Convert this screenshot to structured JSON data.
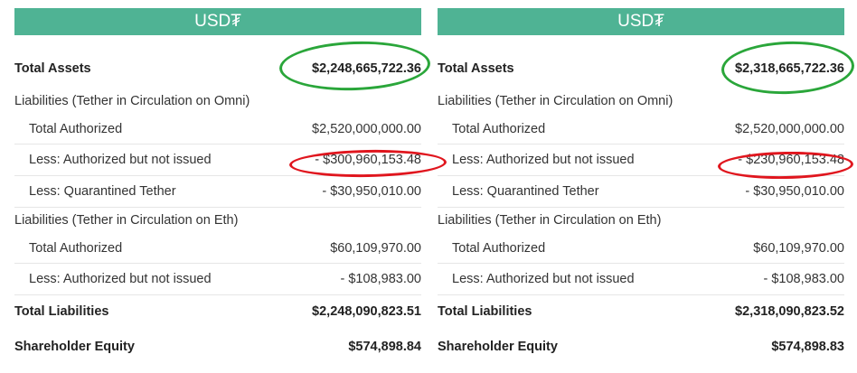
{
  "left": {
    "header": "USD₮",
    "total_assets_label": "Total Assets",
    "total_assets_value": "$2,248,665,722.36",
    "omni_section": "Liabilities (Tether in Circulation on Omni)",
    "omni_total_authorized_label": "Total Authorized",
    "omni_total_authorized_value": "$2,520,000,000.00",
    "omni_less_unissued_label": "Less: Authorized but not issued",
    "omni_less_unissued_value": "- $300,960,153.48",
    "omni_quarantined_label": "Less: Quarantined Tether",
    "omni_quarantined_value": "- $30,950,010.00",
    "eth_section": "Liabilities (Tether in Circulation on Eth)",
    "eth_total_authorized_label": "Total Authorized",
    "eth_total_authorized_value": "$60,109,970.00",
    "eth_less_unissued_label": "Less: Authorized but not issued",
    "eth_less_unissued_value": "- $108,983.00",
    "total_liabilities_label": "Total Liabilities",
    "total_liabilities_value": "$2,248,090,823.51",
    "shareholder_equity_label": "Shareholder Equity",
    "shareholder_equity_value": "$574,898.84"
  },
  "right": {
    "header": "USD₮",
    "total_assets_label": "Total Assets",
    "total_assets_value": "$2,318,665,722.36",
    "omni_section": "Liabilities (Tether in Circulation on Omni)",
    "omni_total_authorized_label": "Total Authorized",
    "omni_total_authorized_value": "$2,520,000,000.00",
    "omni_less_unissued_label": "Less: Authorized but not issued",
    "omni_less_unissued_value": "- $230,960,153.48",
    "omni_quarantined_label": "Less: Quarantined Tether",
    "omni_quarantined_value": "- $30,950,010.00",
    "eth_section": "Liabilities (Tether in Circulation on Eth)",
    "eth_total_authorized_label": "Total Authorized",
    "eth_total_authorized_value": "$60,109,970.00",
    "eth_less_unissued_label": "Less: Authorized but not issued",
    "eth_less_unissued_value": "- $108,983.00",
    "total_liabilities_label": "Total Liabilities",
    "total_liabilities_value": "$2,318,090,823.52",
    "shareholder_equity_label": "Shareholder Equity",
    "shareholder_equity_value": "$574,898.83"
  },
  "annotations": {
    "highlight_total_assets_color": "#2aa63a",
    "highlight_unissued_color": "#e0161e"
  }
}
